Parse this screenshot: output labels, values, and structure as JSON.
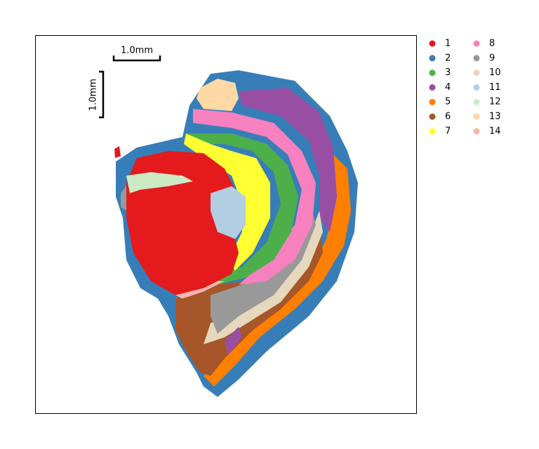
{
  "chart_data": {
    "type": "spatial",
    "scalebar": {
      "x_label": "1.0mm",
      "y_label": "1.0mm"
    },
    "series": [
      {
        "name": "1",
        "color": "#e41a1c"
      },
      {
        "name": "2",
        "color": "#377eb8"
      },
      {
        "name": "3",
        "color": "#4daf4a"
      },
      {
        "name": "4",
        "color": "#984ea3"
      },
      {
        "name": "5",
        "color": "#ff7f00"
      },
      {
        "name": "6",
        "color": "#a65628"
      },
      {
        "name": "7",
        "color": "#ffff33"
      },
      {
        "name": "8",
        "color": "#f781bf"
      },
      {
        "name": "9",
        "color": "#999999"
      },
      {
        "name": "10",
        "color": "#e5d8bd"
      },
      {
        "name": "11",
        "color": "#b3cde3"
      },
      {
        "name": "12",
        "color": "#ccebc5"
      },
      {
        "name": "13",
        "color": "#fed9a6"
      },
      {
        "name": "14",
        "color": "#fbb4ae"
      }
    ]
  }
}
